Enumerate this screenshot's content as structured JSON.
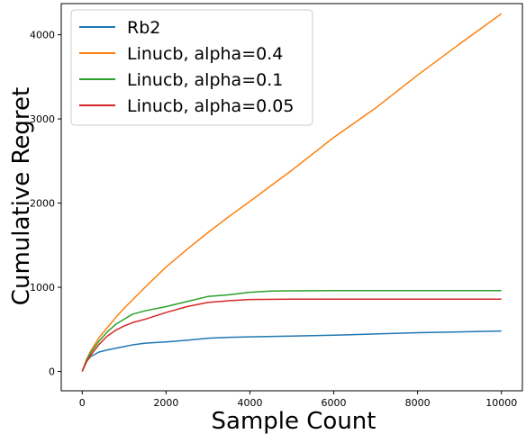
{
  "chart_data": {
    "type": "line",
    "title": "",
    "xlabel": "Sample Count",
    "ylabel": "Cumulative Regret",
    "xlim": [
      -500,
      10500
    ],
    "ylim": [
      -230,
      4370
    ],
    "xticks": [
      0,
      2000,
      4000,
      6000,
      8000,
      10000
    ],
    "yticks": [
      0,
      1000,
      2000,
      3000,
      4000
    ],
    "grid": false,
    "legend_position": "top-left",
    "series": [
      {
        "name": "Rb2",
        "color": "#1f77b4",
        "x": [
          0,
          100,
          200,
          400,
          600,
          800,
          1000,
          1200,
          1500,
          2000,
          2500,
          3000,
          3500,
          4000,
          5000,
          6000,
          7000,
          8000,
          9000,
          10000
        ],
        "y": [
          0,
          120,
          175,
          230,
          255,
          275,
          295,
          315,
          335,
          350,
          370,
          395,
          405,
          410,
          420,
          430,
          445,
          460,
          470,
          480
        ]
      },
      {
        "name": "Linucb, alpha=0.4",
        "color": "#ff7f0e",
        "x": [
          0,
          100,
          200,
          400,
          600,
          800,
          1000,
          1500,
          2000,
          2500,
          3000,
          3500,
          4000,
          5000,
          6000,
          7000,
          8000,
          9000,
          10000
        ],
        "y": [
          0,
          140,
          240,
          400,
          520,
          640,
          750,
          1000,
          1240,
          1450,
          1650,
          1840,
          2020,
          2390,
          2780,
          3130,
          3520,
          3890,
          4250
        ]
      },
      {
        "name": "Linucb, alpha=0.1",
        "color": "#2ca02c",
        "x": [
          0,
          100,
          200,
          400,
          600,
          800,
          1000,
          1200,
          1500,
          2000,
          2500,
          3000,
          3500,
          4000,
          4500,
          5000,
          6000,
          8000,
          10000
        ],
        "y": [
          0,
          130,
          220,
          360,
          470,
          560,
          620,
          680,
          720,
          770,
          830,
          890,
          910,
          940,
          955,
          958,
          960,
          960,
          960
        ]
      },
      {
        "name": "Linucb, alpha=0.05",
        "color": "#d62728",
        "x": [
          0,
          100,
          200,
          400,
          600,
          800,
          1000,
          1200,
          1500,
          2000,
          2500,
          3000,
          3500,
          4000,
          5000,
          6000,
          8000,
          10000
        ],
        "y": [
          0,
          110,
          190,
          320,
          420,
          490,
          540,
          580,
          620,
          700,
          770,
          820,
          840,
          855,
          858,
          858,
          858,
          858
        ]
      }
    ]
  }
}
